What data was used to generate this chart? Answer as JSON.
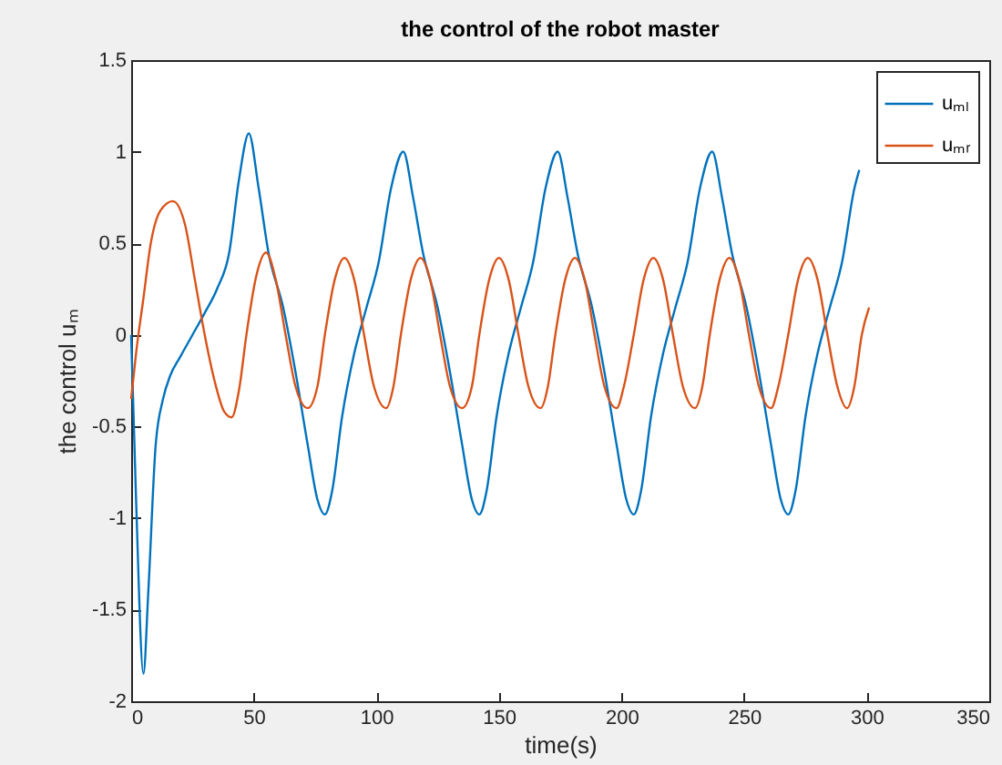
{
  "chart_data": {
    "type": "line",
    "title": "the control of the robot master",
    "xlabel": "time(s)",
    "ylabel": "the control uₘ",
    "xlim": [
      0,
      350
    ],
    "xticks": [
      0,
      50,
      100,
      150,
      200,
      250,
      300,
      350
    ],
    "ylim": [
      -2,
      1.5
    ],
    "yticks": [
      -2,
      -1.5,
      -1,
      -0.5,
      0,
      0.5,
      1,
      1.5
    ],
    "grid": false,
    "legend": "top right",
    "series": [
      {
        "name": "uₘₗ",
        "color": "#0072bd",
        "x": [
          0,
          2,
          5,
          7,
          10,
          13,
          16,
          20,
          25,
          30,
          35,
          40,
          44,
          48,
          52,
          56,
          62,
          67,
          72,
          76,
          79,
          82,
          86,
          91,
          96,
          101,
          106,
          111,
          115,
          119,
          125,
          130,
          135,
          139,
          142,
          145,
          149,
          154,
          159,
          164,
          169,
          174,
          178,
          182,
          188,
          193,
          198,
          202,
          205,
          208,
          212,
          217,
          222,
          227,
          232,
          237,
          241,
          245,
          251,
          256,
          261,
          265,
          268,
          271,
          275,
          280,
          285,
          290,
          295,
          297
        ],
        "values": [
          0,
          -0.9,
          -1.85,
          -1.4,
          -0.6,
          -0.35,
          -0.22,
          -0.12,
          0,
          0.12,
          0.25,
          0.45,
          0.85,
          1.1,
          0.8,
          0.45,
          0.15,
          -0.2,
          -0.6,
          -0.9,
          -0.98,
          -0.85,
          -0.45,
          -0.1,
          0.15,
          0.4,
          0.8,
          1,
          0.75,
          0.45,
          0.15,
          -0.2,
          -0.6,
          -0.9,
          -0.98,
          -0.85,
          -0.45,
          -0.1,
          0.15,
          0.4,
          0.8,
          1,
          0.75,
          0.45,
          0.15,
          -0.2,
          -0.6,
          -0.9,
          -0.98,
          -0.85,
          -0.45,
          -0.1,
          0.15,
          0.4,
          0.8,
          1,
          0.75,
          0.45,
          0.15,
          -0.2,
          -0.6,
          -0.9,
          -0.98,
          -0.85,
          -0.45,
          -0.1,
          0.15,
          0.4,
          0.8,
          0.9
        ]
      },
      {
        "name": "uₘᵣ",
        "color": "#d95319",
        "x": [
          0,
          2,
          5,
          8,
          12,
          17,
          22,
          26,
          30,
          34,
          38,
          41,
          44,
          47,
          51,
          55,
          59,
          63,
          67,
          72,
          76,
          79,
          83,
          87,
          91,
          95,
          99,
          104,
          107,
          110,
          114,
          118,
          122,
          126,
          130,
          135,
          139,
          142,
          146,
          150,
          154,
          158,
          162,
          167,
          170,
          173,
          177,
          181,
          185,
          189,
          193,
          198,
          201,
          205,
          209,
          213,
          217,
          221,
          225,
          230,
          233,
          236,
          240,
          244,
          248,
          252,
          256,
          261,
          264,
          268,
          272,
          276,
          280,
          284,
          288,
          292,
          295,
          298,
          301
        ],
        "values": [
          -0.35,
          -0.1,
          0.2,
          0.5,
          0.68,
          0.73,
          0.6,
          0.3,
          0,
          -0.25,
          -0.42,
          -0.45,
          -0.3,
          0,
          0.32,
          0.45,
          0.3,
          0,
          -0.28,
          -0.4,
          -0.28,
          0,
          0.3,
          0.42,
          0.3,
          0,
          -0.28,
          -0.4,
          -0.28,
          0,
          0.3,
          0.42,
          0.3,
          0,
          -0.28,
          -0.4,
          -0.28,
          0,
          0.3,
          0.42,
          0.3,
          0,
          -0.28,
          -0.4,
          -0.28,
          0,
          0.3,
          0.42,
          0.3,
          0,
          -0.28,
          -0.4,
          -0.28,
          0,
          0.3,
          0.42,
          0.3,
          0,
          -0.28,
          -0.4,
          -0.28,
          0,
          0.3,
          0.42,
          0.3,
          0,
          -0.28,
          -0.4,
          -0.28,
          0,
          0.3,
          0.42,
          0.3,
          0,
          -0.28,
          -0.4,
          -0.28,
          0,
          0.15
        ]
      }
    ]
  }
}
